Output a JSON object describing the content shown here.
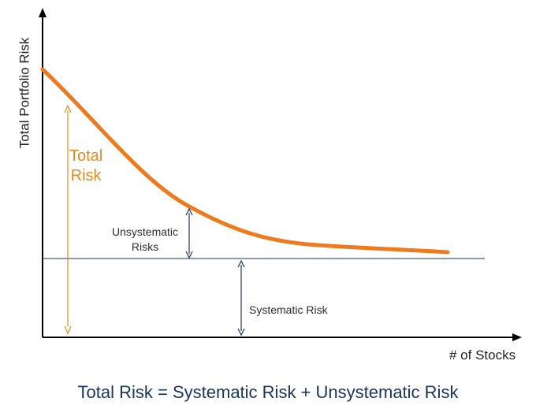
{
  "axes": {
    "y_label": "Total Portfolio Risk",
    "x_label": "# of Stocks"
  },
  "labels": {
    "total_risk_line1": "Total",
    "total_risk_line2": "Risk",
    "unsystematic_line1": "Unsystematic",
    "unsystematic_line2": "Risks",
    "systematic": "Systematic Risk"
  },
  "formula": "Total Risk = Systematic Risk + Unsystematic Risk",
  "colors": {
    "curve": "#ef7a1e",
    "total_risk": "#e58a21",
    "arrow_dark": "#1a3560",
    "axis": "#000000",
    "formula": "#1a3560"
  }
}
